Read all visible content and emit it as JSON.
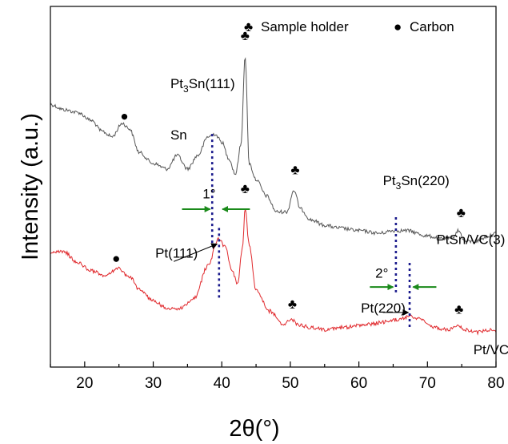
{
  "chart_data": {
    "type": "line",
    "xlabel": "2θ(°)",
    "ylabel": "Intensity (a.u.)",
    "xlim": [
      15,
      80
    ],
    "xticks": [
      "20",
      "30",
      "40",
      "50",
      "60",
      "70",
      "80"
    ],
    "grid": false,
    "legend": {
      "placement": "top-right",
      "items": [
        {
          "symbol": "♣",
          "label": "Sample holder"
        },
        {
          "symbol": "●",
          "label": "Carbon"
        }
      ]
    },
    "series": [
      {
        "name": "PtSn/VC(3)",
        "color": "#555555",
        "x": [
          15,
          17,
          19,
          21,
          22.5,
          24,
          25.5,
          26.5,
          28,
          30,
          32,
          33.5,
          35,
          36.5,
          38,
          39,
          40,
          41,
          42,
          42.8,
          43.4,
          44,
          45,
          46.5,
          48,
          49.5,
          50.5,
          51.5,
          53,
          55,
          57,
          60,
          63,
          65,
          67,
          70,
          72,
          73.5,
          74.5,
          75.5,
          77,
          79,
          80
        ],
        "y": [
          0.82,
          0.8,
          0.79,
          0.76,
          0.72,
          0.7,
          0.75,
          0.73,
          0.64,
          0.6,
          0.58,
          0.63,
          0.58,
          0.63,
          0.7,
          0.71,
          0.68,
          0.62,
          0.56,
          0.67,
          1.0,
          0.6,
          0.54,
          0.48,
          0.42,
          0.42,
          0.5,
          0.43,
          0.39,
          0.37,
          0.36,
          0.35,
          0.34,
          0.35,
          0.35,
          0.33,
          0.32,
          0.32,
          0.35,
          0.31,
          0.31,
          0.33,
          0.34
        ]
      },
      {
        "name": "Pt/VC",
        "color": "#e0282c",
        "x": [
          15,
          17,
          19,
          21,
          23,
          24.8,
          26.5,
          28,
          30,
          32,
          34,
          36,
          38,
          39.5,
          40.5,
          41.5,
          42.3,
          43,
          43.4,
          44,
          45,
          47,
          49,
          50.2,
          51,
          53,
          55,
          58,
          61,
          64,
          66,
          67.5,
          69,
          71,
          73,
          74.4,
          75.5,
          77,
          79,
          80
        ],
        "y": [
          0.27,
          0.27,
          0.23,
          0.2,
          0.18,
          0.21,
          0.18,
          0.13,
          0.09,
          0.06,
          0.06,
          0.1,
          0.22,
          0.32,
          0.29,
          0.2,
          0.15,
          0.28,
          0.43,
          0.3,
          0.13,
          0.05,
          0.0,
          0.02,
          0.0,
          -0.01,
          -0.02,
          -0.01,
          0.0,
          0.01,
          0.02,
          0.03,
          0.02,
          -0.01,
          -0.02,
          0.0,
          -0.02,
          -0.03,
          -0.02,
          -0.03
        ]
      }
    ],
    "peak_markers": [
      {
        "x": 25.8,
        "y": 0.76,
        "symbol": "●"
      },
      {
        "x": 43.4,
        "y": 1.06,
        "symbol": "♣"
      },
      {
        "x": 50.7,
        "y": 0.56,
        "symbol": "♣"
      },
      {
        "x": 74.9,
        "y": 0.4,
        "symbol": "♣"
      },
      {
        "x": 24.6,
        "y": 0.23,
        "symbol": "●"
      },
      {
        "x": 43.4,
        "y": 0.49,
        "symbol": "♣"
      },
      {
        "x": 50.3,
        "y": 0.06,
        "symbol": "♣"
      },
      {
        "x": 74.6,
        "y": 0.04,
        "symbol": "♣"
      }
    ],
    "annotations": [
      {
        "text": "Pt3Sn(111)",
        "x": 32.5,
        "y": 0.88
      },
      {
        "text": "Sn",
        "x": 32.5,
        "y": 0.69
      },
      {
        "text": "Pt3Sn(220)",
        "x": 63.5,
        "y": 0.52
      },
      {
        "text": "PtSn/VC(3)",
        "x": 71.3,
        "y": 0.3
      },
      {
        "text": "1°",
        "x": 37.2,
        "y": 0.47
      },
      {
        "text": "2°",
        "x": 62.4,
        "y": 0.175
      },
      {
        "text": "Pt(111)",
        "x": 30.3,
        "y": 0.25
      },
      {
        "text": "Pt(220)",
        "x": 60.3,
        "y": 0.045
      },
      {
        "text": "Pt/VC",
        "x": 76.7,
        "y": -0.11
      }
    ],
    "reference_lines": [
      {
        "name": "Pt3Sn(111)",
        "x": 38.6,
        "y_from": 0.71,
        "y_to": 0.3
      },
      {
        "name": "Pt(111)",
        "x": 39.6,
        "y_from": 0.36,
        "y_to": 0.1
      },
      {
        "name": "Pt3Sn(220)",
        "x": 65.4,
        "y_from": 0.4,
        "y_to": 0.12
      },
      {
        "name": "Pt(220)",
        "x": 67.4,
        "y_from": 0.23,
        "y_to": -0.01
      }
    ],
    "shift_arrows": [
      {
        "x1": 34.2,
        "x2": 38.3,
        "y": 0.43,
        "color": "#1a8a1a"
      },
      {
        "x1": 44.1,
        "x2": 40.1,
        "y": 0.43,
        "color": "#1a8a1a"
      },
      {
        "x1": 61.6,
        "x2": 65.0,
        "y": 0.14,
        "color": "#1a8a1a"
      },
      {
        "x1": 71.3,
        "x2": 67.9,
        "y": 0.14,
        "color": "#1a8a1a"
      }
    ],
    "label_arrows": [
      {
        "x1": 33.0,
        "x2": 39.3,
        "y1": 0.235,
        "y2": 0.3
      },
      {
        "x1": 63.5,
        "x2": 67.2,
        "y1": 0.045,
        "y2": 0.045
      }
    ]
  }
}
